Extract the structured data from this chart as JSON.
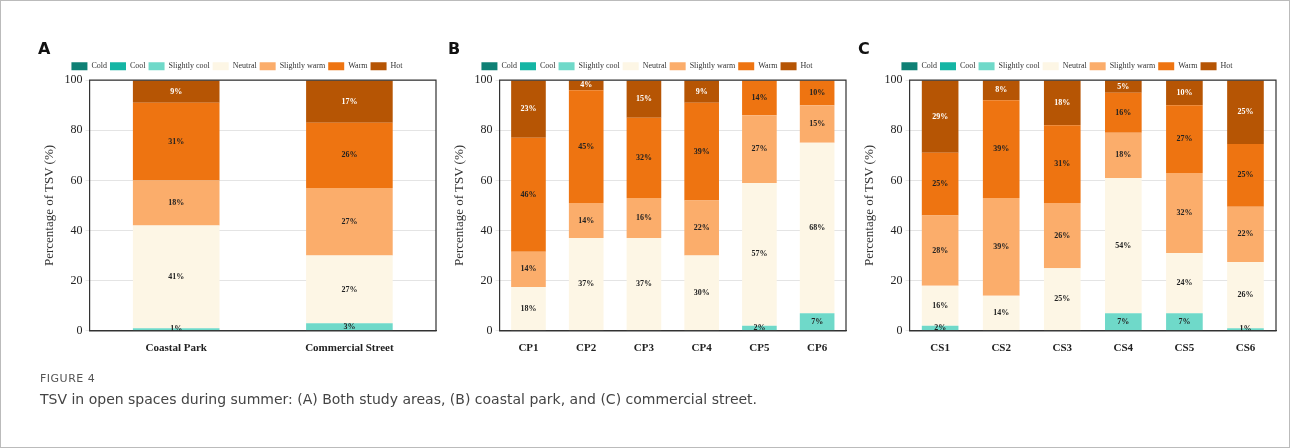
{
  "chart_data": [
    {
      "type": "bar",
      "title": "A",
      "ylabel": "Percentage of TSV (%)",
      "categories": [
        "Coastal Park",
        "Commercial Street"
      ],
      "stacked": true,
      "ylim": [
        0,
        100
      ],
      "yticks": [
        0,
        20,
        40,
        60,
        80,
        100
      ],
      "grid": "y",
      "legend": "top",
      "annotations": [
        "FIGURE 4",
        "TSV in open spaces during summer: (A) Both study areas, (B) coastal park, and (C) commercial street."
      ],
      "series": [
        {
          "name": "Cold",
          "color": "#0e8075",
          "values": [
            0,
            0
          ],
          "value_labels": [
            null,
            null
          ]
        },
        {
          "name": "Cool",
          "color": "#14b5a4",
          "values": [
            0,
            0
          ],
          "value_labels": [
            null,
            null
          ]
        },
        {
          "name": "Slightly cool",
          "color": "#6fd9c9",
          "values": [
            1,
            3
          ],
          "value_labels": [
            "1%",
            "3%"
          ]
        },
        {
          "name": "Neutral",
          "color": "#fdf6e5",
          "values": [
            41,
            27
          ],
          "value_labels": [
            "41%",
            "27%"
          ]
        },
        {
          "name": "Slightly warm",
          "color": "#fbad6b",
          "values": [
            18,
            27
          ],
          "value_labels": [
            "18%",
            "27%"
          ]
        },
        {
          "name": "Warm",
          "color": "#ee7411",
          "values": [
            31,
            26
          ],
          "value_labels": [
            "31%",
            "26%"
          ]
        },
        {
          "name": "Hot",
          "color": "#b65504",
          "values": [
            9,
            17
          ],
          "value_labels": [
            "9%",
            "17%"
          ]
        }
      ]
    },
    {
      "type": "bar",
      "title": "B",
      "ylabel": "Percentage of TSV (%)",
      "categories": [
        "CP1",
        "CP2",
        "CP3",
        "CP4",
        "CP5",
        "CP6"
      ],
      "stacked": true,
      "ylim": [
        0,
        100
      ],
      "yticks": [
        0,
        20,
        40,
        60,
        80,
        100
      ],
      "grid": "y",
      "legend": "top",
      "series": [
        {
          "name": "Cold",
          "color": "#0e8075",
          "values": [
            0,
            0,
            0,
            0,
            0,
            0
          ],
          "value_labels": [
            null,
            null,
            null,
            null,
            null,
            null
          ]
        },
        {
          "name": "Cool",
          "color": "#14b5a4",
          "values": [
            0,
            0,
            0,
            0,
            0,
            0
          ],
          "value_labels": [
            null,
            null,
            null,
            null,
            null,
            null
          ]
        },
        {
          "name": "Slightly cool",
          "color": "#6fd9c9",
          "values": [
            0,
            0,
            0,
            0,
            2,
            7
          ],
          "value_labels": [
            null,
            null,
            null,
            null,
            "2%",
            "7%"
          ]
        },
        {
          "name": "Neutral",
          "color": "#fdf6e5",
          "values": [
            17.5,
            37,
            37,
            30,
            57,
            68
          ],
          "value_labels": [
            "18%",
            "37%",
            "37%",
            "30%",
            "57%",
            "68%"
          ]
        },
        {
          "name": "Slightly warm",
          "color": "#fbad6b",
          "values": [
            14,
            14,
            16,
            22,
            27,
            15
          ],
          "value_labels": [
            "14%",
            "14%",
            "16%",
            "22%",
            "27%",
            "15%"
          ]
        },
        {
          "name": "Warm",
          "color": "#ee7411",
          "values": [
            45.5,
            45,
            32,
            39,
            14,
            10
          ],
          "value_labels": [
            "46%",
            "45%",
            "32%",
            "39%",
            "14%",
            "10%"
          ]
        },
        {
          "name": "Hot",
          "color": "#b65504",
          "values": [
            23,
            4,
            15,
            9,
            0,
            0
          ],
          "value_labels": [
            "23%",
            "4%",
            "15%",
            "9%",
            null,
            null
          ]
        }
      ]
    },
    {
      "type": "bar",
      "title": "C",
      "ylabel": "Percentage of TSV (%)",
      "categories": [
        "CS1",
        "CS2",
        "CS3",
        "CS4",
        "CS5",
        "CS6"
      ],
      "stacked": true,
      "ylim": [
        0,
        100
      ],
      "yticks": [
        0,
        20,
        40,
        60,
        80,
        100
      ],
      "grid": "y",
      "legend": "top",
      "series": [
        {
          "name": "Cold",
          "color": "#0e8075",
          "values": [
            0,
            0,
            0,
            0,
            0,
            0
          ],
          "value_labels": [
            null,
            null,
            null,
            null,
            null,
            null
          ]
        },
        {
          "name": "Cool",
          "color": "#14b5a4",
          "values": [
            0,
            0,
            0,
            0,
            0,
            0
          ],
          "value_labels": [
            null,
            null,
            null,
            null,
            null,
            null
          ]
        },
        {
          "name": "Slightly cool",
          "color": "#6fd9c9",
          "values": [
            2,
            0,
            0,
            7,
            7,
            1
          ],
          "value_labels": [
            "2%",
            null,
            null,
            "7%",
            "7%",
            "1%"
          ]
        },
        {
          "name": "Neutral",
          "color": "#fdf6e5",
          "values": [
            16,
            14,
            25,
            54,
            24,
            26.5
          ],
          "value_labels": [
            "16%",
            "14%",
            "25%",
            "54%",
            "24%",
            "26%"
          ]
        },
        {
          "name": "Slightly warm",
          "color": "#fbad6b",
          "values": [
            28,
            39,
            26,
            18,
            32,
            22
          ],
          "value_labels": [
            "28%",
            "39%",
            "26%",
            "18%",
            "32%",
            "22%"
          ]
        },
        {
          "name": "Warm",
          "color": "#ee7411",
          "values": [
            25,
            39,
            31,
            16,
            27,
            25
          ],
          "value_labels": [
            "25%",
            "39%",
            "31%",
            "16%",
            "27%",
            "25%"
          ]
        },
        {
          "name": "Hot",
          "color": "#b65504",
          "values": [
            29,
            8,
            18,
            5,
            10,
            25.5
          ],
          "value_labels": [
            "29%",
            "8%",
            "18%",
            "5%",
            "10%",
            "25%"
          ]
        }
      ]
    }
  ]
}
